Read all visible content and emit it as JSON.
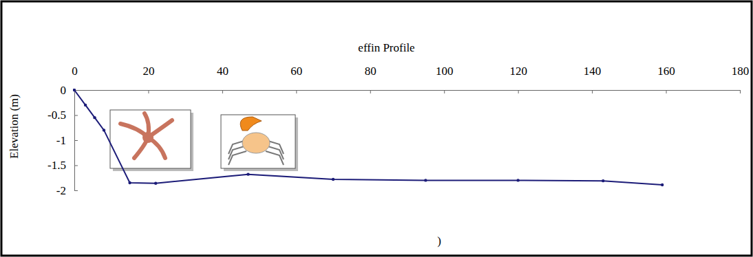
{
  "chart_data": {
    "type": "line",
    "title": "effin Profile",
    "y_label": "Elevation (m)",
    "x_label": ")",
    "x": [
      0,
      3,
      5.5,
      8,
      15,
      22,
      47,
      70,
      95,
      120,
      143,
      159
    ],
    "values": [
      0,
      -0.3,
      -0.55,
      -0.8,
      -1.85,
      -1.86,
      -1.68,
      -1.78,
      -1.8,
      -1.8,
      -1.81,
      -1.89
    ],
    "color": "#1c1c78",
    "marker": "point",
    "xlim": [
      0,
      180
    ],
    "xticks": [
      0,
      20,
      40,
      60,
      80,
      100,
      120,
      140,
      160,
      180
    ],
    "ylim": [
      -2,
      0
    ],
    "yticks": [
      0,
      -0.5,
      -1,
      -1.5,
      -2
    ],
    "grid": false
  }
}
